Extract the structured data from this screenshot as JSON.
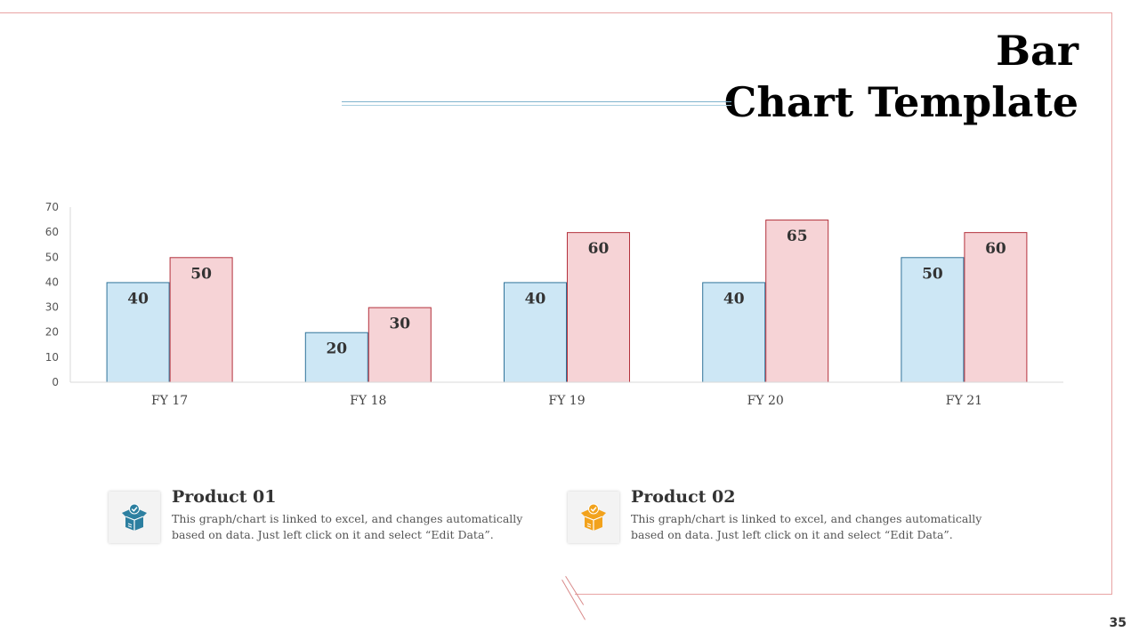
{
  "slide": {
    "title_line1": "Bar",
    "title_line2": "Chart Template",
    "page_number": "35"
  },
  "colors": {
    "series1_fill": "#cde7f5",
    "series1_stroke": "#2f7399",
    "series2_fill": "#f6d3d6",
    "series2_stroke": "#b3313c",
    "frame": "#e8a3a3",
    "icon1": "#2c7fa0",
    "icon2": "#f2a21c"
  },
  "chart_data": {
    "type": "bar",
    "categories": [
      "FY 17",
      "FY 18",
      "FY 19",
      "FY 20",
      "FY 21"
    ],
    "series": [
      {
        "values": [
          40,
          20,
          40,
          40,
          50
        ]
      },
      {
        "values": [
          50,
          30,
          60,
          65,
          60
        ]
      }
    ],
    "ylim": [
      0,
      70
    ],
    "yticks": [
      "0",
      "10",
      "20",
      "30",
      "40",
      "50",
      "60",
      "70"
    ],
    "xlabel": "",
    "ylabel": "",
    "grid": false,
    "data_labels": true
  },
  "products": [
    {
      "title": "Product 01",
      "description": "This graph/chart is linked to excel, and changes automatically based on data. Just left click on it and select “Edit Data”.",
      "icon": "box-check-icon"
    },
    {
      "title": "Product 02",
      "description": "This graph/chart is linked to excel, and changes automatically based on data. Just left click on it and select “Edit Data”.",
      "icon": "box-check-icon"
    }
  ]
}
